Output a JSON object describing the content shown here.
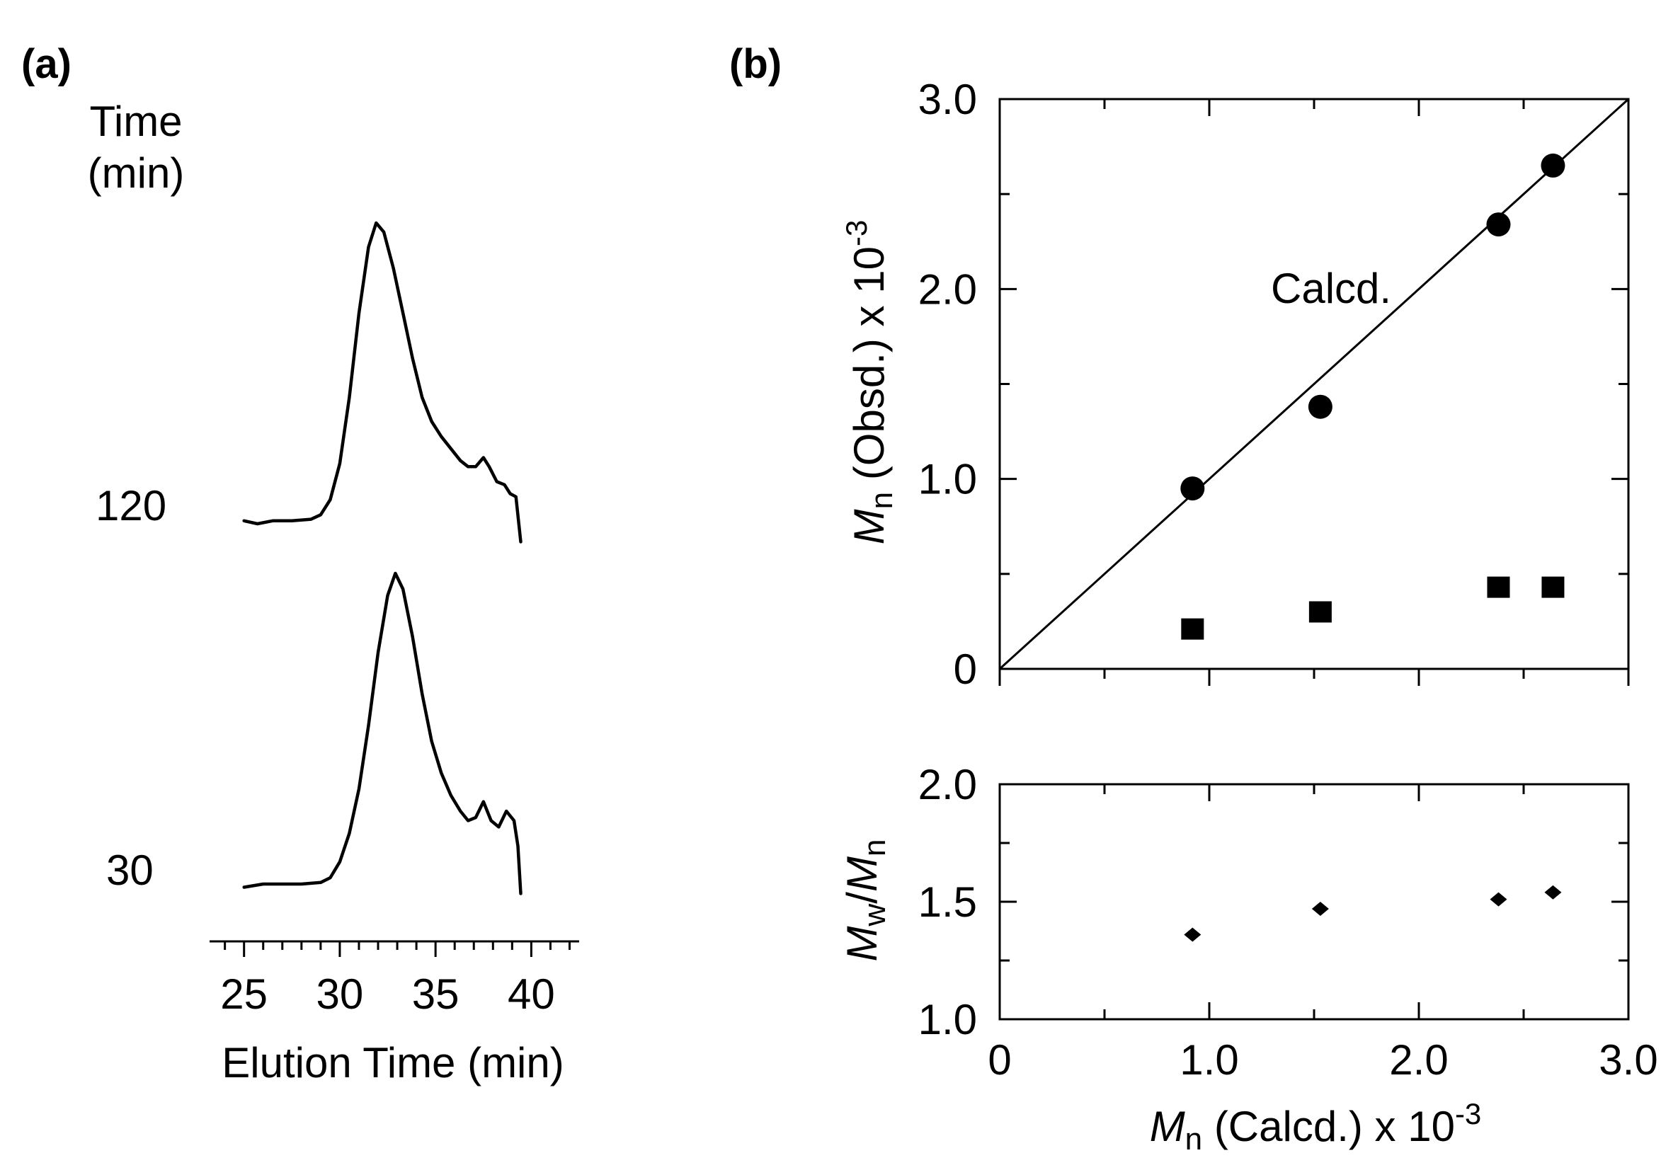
{
  "panel_a_label": "(a)",
  "panel_b_label": "(b)",
  "chart_data": [
    {
      "id": "sec",
      "type": "line",
      "title": "",
      "time_header_line1": "Time",
      "time_header_line2": "(min)",
      "xlabel": "Elution Time (min)",
      "xlim": [
        23.2,
        42.5
      ],
      "x_ticks": [
        25,
        30,
        35,
        40
      ],
      "series": [
        {
          "name": "120",
          "points": [
            [
              25.0,
              0.01
            ],
            [
              25.7,
              0.0
            ],
            [
              26.5,
              0.01
            ],
            [
              27.5,
              0.01
            ],
            [
              28.5,
              0.015
            ],
            [
              29.0,
              0.03
            ],
            [
              29.5,
              0.08
            ],
            [
              30.0,
              0.2
            ],
            [
              30.5,
              0.42
            ],
            [
              31.0,
              0.7
            ],
            [
              31.5,
              0.92
            ],
            [
              31.9,
              1.0
            ],
            [
              32.3,
              0.97
            ],
            [
              32.8,
              0.85
            ],
            [
              33.3,
              0.7
            ],
            [
              33.8,
              0.55
            ],
            [
              34.3,
              0.42
            ],
            [
              34.8,
              0.34
            ],
            [
              35.3,
              0.29
            ],
            [
              35.8,
              0.25
            ],
            [
              36.3,
              0.21
            ],
            [
              36.7,
              0.19
            ],
            [
              37.1,
              0.19
            ],
            [
              37.5,
              0.22
            ],
            [
              37.8,
              0.19
            ],
            [
              38.2,
              0.14
            ],
            [
              38.6,
              0.13
            ],
            [
              38.9,
              0.1
            ],
            [
              39.2,
              0.09
            ],
            [
              39.45,
              -0.06
            ]
          ]
        },
        {
          "name": "30",
          "points": [
            [
              25.0,
              0.01
            ],
            [
              26.0,
              0.02
            ],
            [
              27.0,
              0.02
            ],
            [
              28.0,
              0.02
            ],
            [
              29.0,
              0.025
            ],
            [
              29.5,
              0.04
            ],
            [
              30.0,
              0.09
            ],
            [
              30.5,
              0.18
            ],
            [
              31.0,
              0.32
            ],
            [
              31.5,
              0.52
            ],
            [
              32.0,
              0.75
            ],
            [
              32.5,
              0.93
            ],
            [
              32.9,
              1.0
            ],
            [
              33.3,
              0.95
            ],
            [
              33.8,
              0.8
            ],
            [
              34.3,
              0.62
            ],
            [
              34.8,
              0.47
            ],
            [
              35.3,
              0.37
            ],
            [
              35.8,
              0.3
            ],
            [
              36.3,
              0.25
            ],
            [
              36.7,
              0.22
            ],
            [
              37.1,
              0.23
            ],
            [
              37.5,
              0.28
            ],
            [
              37.9,
              0.22
            ],
            [
              38.3,
              0.2
            ],
            [
              38.7,
              0.25
            ],
            [
              39.1,
              0.22
            ],
            [
              39.3,
              0.14
            ],
            [
              39.45,
              -0.01
            ]
          ]
        }
      ]
    },
    {
      "id": "mn",
      "type": "scatter",
      "ylabel": "Mn (Obsd.) x 10-3",
      "ylabel_main": "M",
      "ylabel_sub": "n",
      "ylabel_rest": " (Obsd.) x 10",
      "ylabel_sup": "-3",
      "ideal_line_label": "Calcd.",
      "xlim": [
        0,
        3.0
      ],
      "ylim": [
        0,
        3.0
      ],
      "y_ticks": [
        {
          "value": 0,
          "label": "0"
        },
        {
          "value": 1.0,
          "label": "1.0"
        },
        {
          "value": 2.0,
          "label": "2.0"
        },
        {
          "value": 3.0,
          "label": "3.0"
        }
      ],
      "series": [
        {
          "name": "circles",
          "marker": "circle",
          "x": [
            0.92,
            1.53,
            2.38,
            2.64
          ],
          "y": [
            0.95,
            1.38,
            2.34,
            2.65
          ]
        },
        {
          "name": "squares",
          "marker": "square",
          "x": [
            0.92,
            1.53,
            2.38,
            2.64
          ],
          "y": [
            0.21,
            0.3,
            0.43,
            0.43
          ]
        }
      ]
    },
    {
      "id": "pdi",
      "type": "scatter",
      "ylabel": "Mw/Mn",
      "ylabel_m1": "M",
      "ylabel_sub1": "w",
      "ylabel_slash": "/",
      "ylabel_m2": "M",
      "ylabel_sub2": "n",
      "xlabel": "Mn (Calcd.) x 10-3",
      "xlabel_main": "M",
      "xlabel_sub": "n",
      "xlabel_rest": " (Calcd.) x 10",
      "xlabel_sup": "-3",
      "xlim": [
        0,
        3.0
      ],
      "ylim": [
        1.0,
        2.0
      ],
      "x_ticks": [
        {
          "value": 0,
          "label": "0"
        },
        {
          "value": 1.0,
          "label": "1.0"
        },
        {
          "value": 2.0,
          "label": "2.0"
        },
        {
          "value": 3.0,
          "label": "3.0"
        }
      ],
      "y_ticks": [
        {
          "value": 1.0,
          "label": "1.0"
        },
        {
          "value": 1.5,
          "label": "1.5"
        },
        {
          "value": 2.0,
          "label": "2.0"
        }
      ],
      "series": [
        {
          "name": "diamonds",
          "marker": "diamond",
          "x": [
            0.92,
            1.53,
            2.38,
            2.64
          ],
          "y": [
            1.36,
            1.47,
            1.51,
            1.54
          ]
        }
      ]
    }
  ]
}
